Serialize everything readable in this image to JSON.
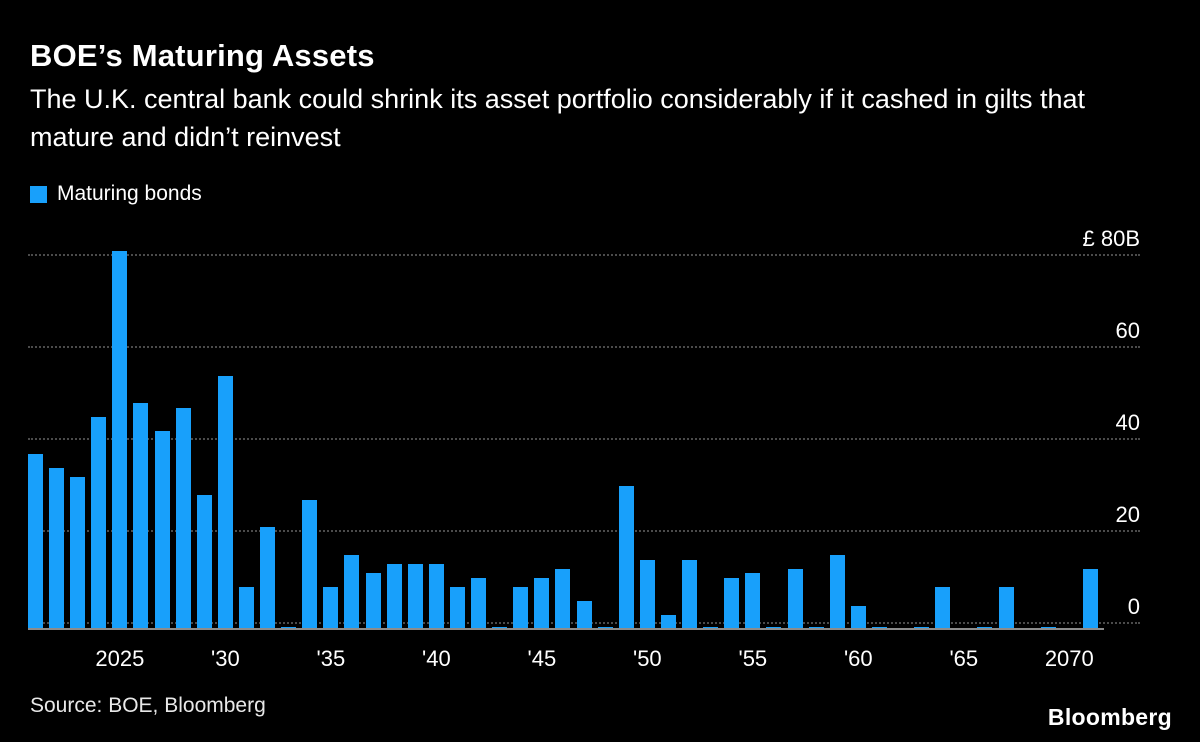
{
  "header": {
    "title": "BOE’s Maturing Assets",
    "subtitle": "The U.K. central bank could shrink its asset portfolio considerably if it cashed in gilts that mature and didn’t reinvest"
  },
  "legend": {
    "label": "Maturing bonds",
    "color": "#18a0fb"
  },
  "footer": {
    "source": "Source: BOE, Bloomberg",
    "logo": "Bloomberg"
  },
  "chart_data": {
    "type": "bar",
    "title": "BOE’s Maturing Assets",
    "series_name": "Maturing bonds",
    "unit": "£B (billions of pounds)",
    "bar_color": "#18a0fb",
    "grid": "horizontal dotted",
    "legend_position": "top-left",
    "ylim": [
      0,
      80
    ],
    "x": [
      2021,
      2022,
      2023,
      2024,
      2025,
      2026,
      2027,
      2028,
      2029,
      2030,
      2031,
      2032,
      2033,
      2034,
      2035,
      2036,
      2037,
      2038,
      2039,
      2040,
      2041,
      2042,
      2043,
      2044,
      2045,
      2046,
      2047,
      2048,
      2049,
      2050,
      2051,
      2052,
      2053,
      2054,
      2055,
      2056,
      2057,
      2058,
      2059,
      2060,
      2061,
      2062,
      2063,
      2064,
      2065,
      2066,
      2067,
      2068,
      2069,
      2070,
      2071
    ],
    "values": [
      37,
      34,
      32,
      45,
      81,
      48,
      42,
      47,
      28,
      54,
      8,
      21,
      0.5,
      27,
      8,
      15,
      11,
      13,
      13,
      13,
      8,
      10,
      0.5,
      8,
      10,
      12,
      5,
      0.5,
      30,
      14,
      2,
      14,
      0.5,
      10,
      11,
      0.5,
      12,
      0.5,
      15,
      4,
      0.5,
      0,
      0.5,
      8,
      0,
      0.5,
      8,
      0,
      0.5,
      0,
      12
    ],
    "y_ticks": [
      {
        "value": 80,
        "label": "£ 80B"
      },
      {
        "value": 60,
        "label": "60"
      },
      {
        "value": 40,
        "label": "40"
      },
      {
        "value": 20,
        "label": "20"
      },
      {
        "value": 0,
        "label": "0"
      }
    ],
    "x_ticks": [
      {
        "year": 2025,
        "label": "2025"
      },
      {
        "year": 2030,
        "label": "'30"
      },
      {
        "year": 2035,
        "label": "'35"
      },
      {
        "year": 2040,
        "label": "'40"
      },
      {
        "year": 2045,
        "label": "'45"
      },
      {
        "year": 2050,
        "label": "'50"
      },
      {
        "year": 2055,
        "label": "'55"
      },
      {
        "year": 2060,
        "label": "'60"
      },
      {
        "year": 2065,
        "label": "'65"
      },
      {
        "year": 2070,
        "label": "2070"
      }
    ]
  }
}
